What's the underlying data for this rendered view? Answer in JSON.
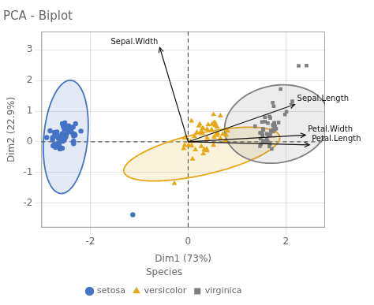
{
  "chart_data": {
    "type": "scatter",
    "title": "PCA - Biplot",
    "xlabel": "Dim1 (73%)",
    "ylabel": "Dim2 (22.9%)",
    "xlim": [
      -3.0,
      2.8
    ],
    "ylim": [
      -2.8,
      3.6
    ],
    "xticks": [
      -2,
      0,
      2
    ],
    "yticks": [
      -2,
      -1,
      0,
      1,
      2,
      3
    ],
    "grid": true,
    "legend": "bottom",
    "legend_title": "Species",
    "ref_lines": {
      "x": [
        0
      ],
      "y": [
        0
      ],
      "color": "#333333",
      "line_style": "dashed"
    },
    "series": [
      {
        "name": "setosa",
        "color": "#4472C4",
        "marker": "circle",
        "ellipse": {
          "cx": -2.5,
          "cy": 0.16,
          "width": 0.9,
          "height": 3.7,
          "angle": -3
        },
        "values": [
          [
            -2.68,
            0.32
          ],
          [
            -2.71,
            -0.18
          ],
          [
            -2.89,
            0.14
          ],
          [
            -2.73,
            0.31
          ],
          [
            -2.57,
            0.59
          ],
          [
            -2.77,
            0.14
          ],
          [
            -2.63,
            -0.13
          ],
          [
            -2.32,
            0.25
          ],
          [
            -2.4,
            0.41
          ],
          [
            -2.19,
            0.35
          ],
          [
            -2.54,
            0.09
          ],
          [
            -2.52,
            0.11
          ],
          [
            -2.34,
            -0.06
          ],
          [
            -2.62,
            -0.23
          ],
          [
            -2.82,
            0.36
          ],
          [
            -2.52,
            0.62
          ],
          [
            -2.44,
            0.52
          ],
          [
            -2.62,
            0.19
          ],
          [
            -2.53,
            0.55
          ],
          [
            -2.52,
            0.22
          ],
          [
            -2.65,
            -0.08
          ],
          [
            -2.53,
            0.41
          ],
          [
            -2.57,
            -0.21
          ],
          [
            -2.3,
            0.59
          ],
          [
            -2.53,
            0.08
          ],
          [
            -2.31,
            0.22
          ],
          [
            -2.55,
            0.07
          ],
          [
            -2.65,
            0.11
          ],
          [
            -2.34,
            0.19
          ],
          [
            -2.5,
            0.16
          ],
          [
            -2.56,
            0.02
          ],
          [
            -2.6,
            0.03
          ],
          [
            -2.64,
            -0.06
          ],
          [
            -2.76,
            -0.13
          ],
          [
            -2.77,
            0.07
          ],
          [
            -2.49,
            0.43
          ],
          [
            -2.42,
            0.38
          ],
          [
            -2.47,
            0.36
          ],
          [
            -2.34,
            0.02
          ],
          [
            -2.49,
            0.23
          ],
          [
            -2.57,
            0.27
          ],
          [
            -2.6,
            0.07
          ],
          [
            -2.73,
            -0.08
          ],
          [
            -2.73,
            0.18
          ],
          [
            -2.69,
            0.27
          ],
          [
            -2.35,
            0.48
          ],
          [
            -2.39,
            0.42
          ],
          [
            -2.36,
            0.28
          ],
          [
            -2.55,
            0.5
          ],
          [
            -2.45,
            0.32
          ],
          [
            -1.13,
            -2.38
          ]
        ]
      },
      {
        "name": "versicolor",
        "color": "#E6A817",
        "marker": "triangle",
        "ellipse": {
          "cx": 0.28,
          "cy": -0.4,
          "width": 1.3,
          "height": 3.4,
          "angle": -68
        },
        "values": [
          [
            0.66,
            0.85
          ],
          [
            0.24,
            0.58
          ],
          [
            0.52,
            0.89
          ],
          [
            0.29,
            0.29
          ],
          [
            0.53,
            0.62
          ],
          [
            0.27,
            0.27
          ],
          [
            0.71,
            0.25
          ],
          [
            0.01,
            -0.12
          ],
          [
            0.49,
            0.57
          ],
          [
            0.27,
            -0.15
          ],
          [
            0.07,
            0.68
          ],
          [
            0.29,
            0.43
          ],
          [
            0.39,
            0.41
          ],
          [
            0.39,
            0.12
          ],
          [
            0.41,
            0.56
          ],
          [
            0.55,
            0.53
          ],
          [
            0.48,
            0.39
          ],
          [
            0.59,
            0.49
          ],
          [
            0.38,
            -0.24
          ],
          [
            0.31,
            0.43
          ],
          [
            0.66,
            0.11
          ],
          [
            0.55,
            0.62
          ],
          [
            0.78,
            0.22
          ],
          [
            0.52,
            -0.11
          ],
          [
            0.6,
            0.29
          ],
          [
            0.48,
            0.37
          ],
          [
            0.59,
            0.29
          ],
          [
            0.76,
            0.41
          ],
          [
            0.59,
            0.49
          ],
          [
            0.18,
            0.31
          ],
          [
            0.22,
            0.52
          ],
          [
            0.76,
            0.03
          ],
          [
            0.53,
            0.15
          ],
          [
            0.81,
            0.35
          ],
          [
            0.27,
            0.33
          ],
          [
            0.59,
            0.22
          ],
          [
            0.27,
            0.34
          ],
          [
            0.07,
            -0.13
          ],
          [
            0.09,
            -0.56
          ],
          [
            0.15,
            -0.26
          ],
          [
            -0.07,
            0.13
          ],
          [
            0.31,
            -0.39
          ],
          [
            0.33,
            -0.25
          ],
          [
            0.07,
            -0.13
          ],
          [
            0.38,
            -0.29
          ],
          [
            0.13,
            0.17
          ],
          [
            -0.07,
            -0.11
          ],
          [
            -0.09,
            -0.22
          ],
          [
            0.05,
            0.02
          ],
          [
            -0.28,
            -1.36
          ]
        ]
      },
      {
        "name": "virginica",
        "color": "#7f7f7f",
        "marker": "square",
        "ellipse": {
          "cx": 1.82,
          "cy": 0.58,
          "width": 2.1,
          "height": 2.6,
          "angle": -17
        },
        "values": [
          [
            1.76,
            0.6
          ],
          [
            1.49,
            0.3
          ],
          [
            1.8,
            0.43
          ],
          [
            1.47,
            -0.14
          ],
          [
            1.76,
            0.48
          ],
          [
            1.66,
            0.83
          ],
          [
            1.37,
            0.51
          ],
          [
            1.52,
            0.2
          ],
          [
            1.48,
            0.1
          ],
          [
            1.72,
            0.39
          ],
          [
            1.69,
            0.35
          ],
          [
            1.66,
            -0.15
          ],
          [
            1.62,
            -0.01
          ],
          [
            1.49,
            -0.07
          ],
          [
            1.51,
            0.65
          ],
          [
            1.76,
            0.62
          ],
          [
            1.78,
            0.47
          ],
          [
            1.63,
            0.61
          ],
          [
            1.71,
            -0.23
          ],
          [
            1.78,
            0.41
          ],
          [
            1.98,
            0.89
          ],
          [
            1.85,
            0.63
          ],
          [
            2.26,
            2.48
          ],
          [
            1.73,
            1.28
          ],
          [
            2.13,
            1.32
          ],
          [
            2.01,
            0.98
          ],
          [
            1.57,
            0.8
          ],
          [
            1.57,
            0.66
          ],
          [
            1.61,
            0.26
          ],
          [
            1.52,
            0.26
          ],
          [
            1.67,
            -0.07
          ],
          [
            1.74,
            0.54
          ],
          [
            1.74,
            0.34
          ],
          [
            1.89,
            1.72
          ],
          [
            1.75,
            1.16
          ],
          [
            1.78,
            0.46
          ],
          [
            1.63,
            0.01
          ],
          [
            1.68,
            0.24
          ],
          [
            1.78,
            0.52
          ],
          [
            1.64,
            0.21
          ],
          [
            1.68,
            0.78
          ],
          [
            2.42,
            2.49
          ],
          [
            1.53,
            0.42
          ],
          [
            1.55,
            0.01
          ],
          [
            1.73,
            0.55
          ],
          [
            1.61,
            0.08
          ],
          [
            1.54,
            0.39
          ],
          [
            1.47,
            0.29
          ],
          [
            1.55,
            0.01
          ],
          [
            1.53,
            0.04
          ]
        ]
      }
    ],
    "arrow_color": "#111111",
    "arrows": [
      {
        "label": "Sepal.Width",
        "x": -0.58,
        "y": 3.08
      },
      {
        "label": "Sepal.Length",
        "x": 2.18,
        "y": 1.22
      },
      {
        "label": "Petal.Width",
        "x": 2.4,
        "y": 0.22
      },
      {
        "label": "Petal.Length",
        "x": 2.48,
        "y": -0.1
      }
    ]
  }
}
